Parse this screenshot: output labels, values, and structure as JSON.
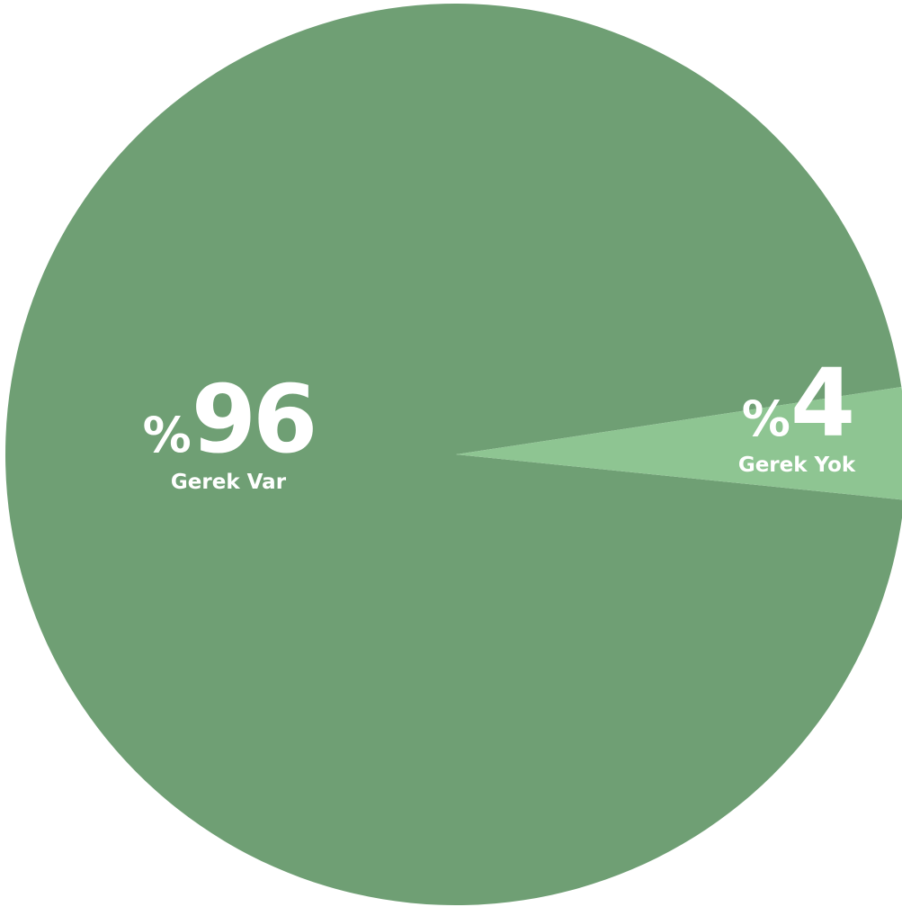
{
  "chart_data": {
    "type": "pie",
    "slices": [
      {
        "label": "Gerek Var",
        "value": 96,
        "percent_sign": "%",
        "value_text": "96",
        "color": "#6f9f74"
      },
      {
        "label": "Gerek Yok",
        "value": 4,
        "percent_sign": "%",
        "value_text": "4",
        "color": "#8ec592"
      }
    ]
  }
}
